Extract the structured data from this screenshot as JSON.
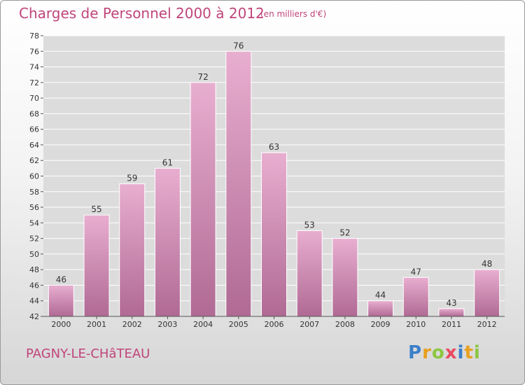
{
  "header": {
    "title": "Charges de Personnel 2000 à 2012",
    "unit": "(en milliers d'€)"
  },
  "footer": {
    "place": "PAGNY-LE-CHâTEAU"
  },
  "logo": {
    "letters": [
      "P",
      "r",
      "o",
      "x",
      "i",
      "t",
      "i"
    ],
    "colors": [
      "#3a7fc9",
      "#e8a020",
      "#8cc63f",
      "#e84a5f",
      "#3a7fc9",
      "#e8a020",
      "#8cc63f"
    ]
  },
  "colors": {
    "bar_light": "#e8aed0",
    "bar_dark": "#b06a94",
    "text_accent": "#c0457b",
    "grid": "#ffffff",
    "plot_bg": "#dcdcdc"
  },
  "chart_data": {
    "type": "bar",
    "title": "Charges de Personnel 2000 à 2012",
    "subtitle": "(en milliers d'€)",
    "categories": [
      "2000",
      "2001",
      "2002",
      "2003",
      "2004",
      "2005",
      "2006",
      "2007",
      "2008",
      "2009",
      "2010",
      "2011",
      "2012"
    ],
    "values": [
      46,
      55,
      59,
      61,
      72,
      76,
      63,
      53,
      52,
      44,
      47,
      43,
      48
    ],
    "ylim": [
      42,
      78
    ],
    "yticks": [
      42,
      44,
      46,
      48,
      50,
      52,
      54,
      56,
      58,
      60,
      62,
      64,
      66,
      68,
      70,
      72,
      74,
      76,
      78
    ],
    "grid": true,
    "data_labels": true
  }
}
